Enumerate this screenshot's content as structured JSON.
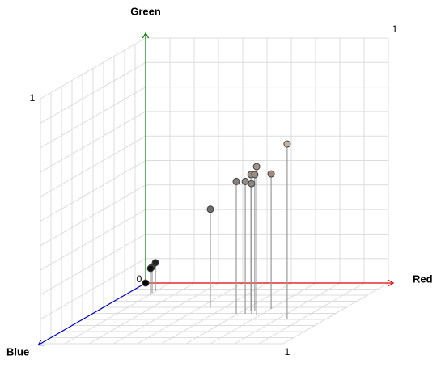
{
  "chart_data": {
    "type": "scatter3d",
    "x_label": "Red",
    "y_label": "Green",
    "z_label": "Blue",
    "x_color": "#e00000",
    "y_color": "#008000",
    "z_color": "#0000cc",
    "xlim": [
      0,
      1
    ],
    "ylim": [
      0,
      1
    ],
    "zlim": [
      0,
      1
    ],
    "xticks": [
      0,
      1
    ],
    "yticks": [
      1
    ],
    "zticks": [
      1
    ],
    "grid": true,
    "x": [
      0.44,
      0.593,
      0.63,
      0.636,
      0.688,
      0.652,
      0.656,
      0.702,
      0.843,
      0.098,
      0.096,
      0.107,
      0
    ],
    "y": [
      0.4,
      0.54,
      0.54,
      0.558,
      0.607,
      0.558,
      0.531,
      0.551,
      0.716,
      0.116,
      0.106,
      0.109,
      0
    ],
    "z": [
      0.4,
      0.507,
      0.507,
      0.467,
      0.533,
      0.467,
      0.507,
      0.427,
      0.6,
      0.133,
      0.16,
      0.2,
      0
    ],
    "colors": [
      "#6e6e6e",
      "#8a7f78",
      "#8f8a85",
      "#9c8a80",
      "#a89484",
      "#9a8b84",
      "#8c8782",
      "#a28a7c",
      "#c8b4a0",
      "#222222",
      "#333333",
      "#111111",
      "#000000"
    ]
  }
}
